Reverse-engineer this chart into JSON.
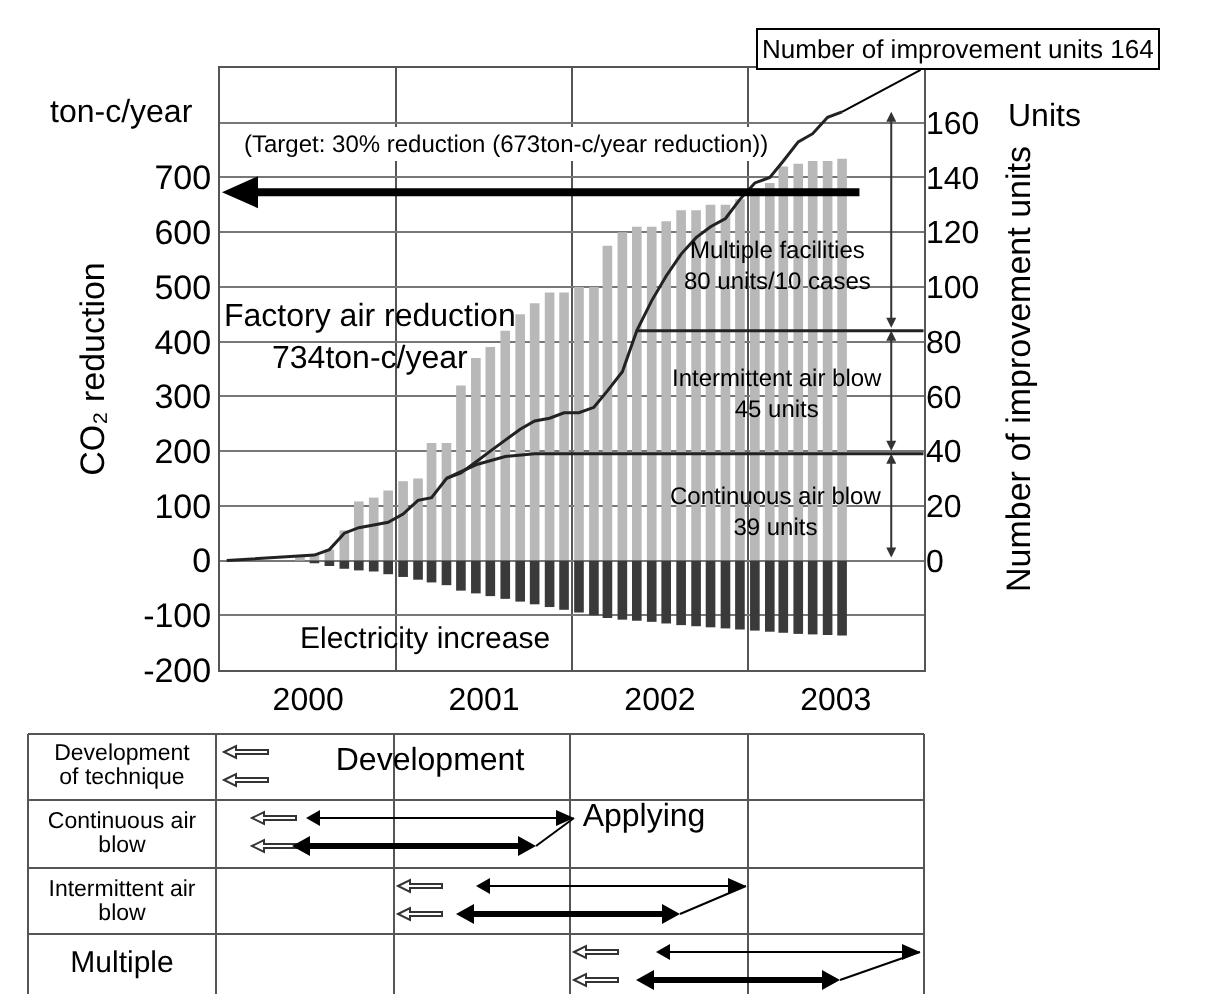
{
  "chart_data": {
    "type": "bar",
    "ylabel": "CO₂ reduction",
    "y2label": "Number of improvement units",
    "x": [
      "2000-06-15",
      "2000-07-15",
      "2000-08-15",
      "2000-09-15",
      "2000-10-15",
      "2000-11-15",
      "2000-12-15",
      "2001-01-15",
      "2001-02-15",
      "2001-03-15",
      "2001-04-15",
      "2001-05-15",
      "2001-06-15",
      "2001-07-15",
      "2001-08-15",
      "2001-09-15",
      "2001-10-15",
      "2001-11-15",
      "2001-12-15",
      "2002-01-15",
      "2002-02-15",
      "2002-03-15",
      "2002-04-15",
      "2002-05-15",
      "2002-06-15",
      "2002-07-15",
      "2002-08-15",
      "2002-09-15",
      "2002-10-15",
      "2002-11-15",
      "2002-12-15",
      "2003-01-15",
      "2003-02-15",
      "2003-03-15",
      "2003-04-15",
      "2003-05-15",
      "2003-06-15",
      "2003-07-15"
    ],
    "xlim": [
      "2000-01-01",
      "2004-01-01"
    ],
    "xticks": [
      {
        "value": "2000-07-02",
        "label": "2000"
      },
      {
        "value": "2001-07-02",
        "label": "2001"
      },
      {
        "value": "2002-07-02",
        "label": "2002"
      },
      {
        "value": "2003-07-02",
        "label": "2003"
      }
    ],
    "stacked": true,
    "ylim": [
      -200,
      900
    ],
    "yticks": [
      -200,
      -100,
      0,
      100,
      200,
      300,
      400,
      500,
      600,
      700,
      {
        "value": 800,
        "label": null
      }
    ],
    "y2lim": [
      -40,
      180
    ],
    "y2ticks": [
      0,
      20,
      40,
      60,
      80,
      100,
      120,
      140,
      160
    ],
    "grid": true,
    "series": [
      {
        "color": "#b8b8b8",
        "values": [
          8,
          12,
          20,
          55,
          108,
          115,
          128,
          145,
          150,
          215,
          215,
          320,
          370,
          390,
          420,
          450,
          470,
          490,
          490,
          500,
          500,
          575,
          600,
          610,
          610,
          620,
          640,
          640,
          650,
          650,
          660,
          680,
          690,
          720,
          725,
          730,
          730,
          734
        ]
      },
      {
        "color": "#3a3a3a",
        "values": [
          null,
          -5,
          -10,
          -15,
          -18,
          -20,
          -25,
          -30,
          -35,
          -40,
          -45,
          -55,
          -60,
          -65,
          -70,
          -75,
          -80,
          -85,
          -90,
          -95,
          -100,
          -105,
          -108,
          -110,
          -112,
          -115,
          -118,
          -120,
          -122,
          -124,
          -126,
          -128,
          -130,
          -132,
          -134,
          -135,
          -136,
          -137
        ]
      },
      {
        "type": "line",
        "axis": "y2",
        "color": "#222222",
        "x": [
          "2000-01-15",
          "2000-07-15",
          "2000-08-15",
          "2000-09-15",
          "2000-10-15",
          "2000-11-15",
          "2000-12-15",
          "2001-01-15",
          "2001-02-15",
          "2001-03-15",
          "2001-04-15",
          "2001-05-15",
          "2001-06-15",
          "2001-07-15",
          "2001-08-15",
          "2001-09-15",
          "2001-10-15",
          "2001-11-15",
          "2001-12-15",
          "2002-01-15",
          "2002-02-15",
          "2002-03-15",
          "2002-04-15",
          "2002-05-15",
          "2002-06-15",
          "2002-07-15",
          "2002-08-15",
          "2002-09-15",
          "2002-10-15",
          "2002-11-15",
          "2002-12-15",
          "2003-01-15",
          "2003-02-15",
          "2003-03-15",
          "2003-04-15",
          "2003-05-15",
          "2003-06-15",
          "2003-07-15"
        ],
        "values": [
          0,
          2,
          4,
          10,
          12,
          13,
          14,
          17,
          22,
          23,
          30,
          32,
          36,
          40,
          44,
          48,
          51,
          52,
          54,
          54,
          56,
          62,
          69,
          84,
          95,
          104,
          112,
          118,
          122,
          125,
          132,
          138,
          140,
          146,
          153,
          156,
          162,
          164
        ]
      },
      {
        "type": "line",
        "axis": "y2",
        "color": "#222222",
        "x": [
          "2002-05-15",
          "2003-12-31"
        ],
        "values": [
          84,
          84
        ]
      },
      {
        "type": "line",
        "axis": "y2",
        "color": "#222222",
        "x": [
          "2001-04-15",
          "2001-06-15",
          "2001-08-15",
          "2001-10-15",
          "2003-12-31"
        ],
        "values": [
          30,
          35,
          38,
          39,
          39
        ]
      }
    ],
    "ref_lines": [
      {
        "axis": "y",
        "value": 673,
        "label": "(Target: 30% reduction (673ton-c/year reduction))",
        "color": "#000000"
      }
    ],
    "annotations": [
      "ton-c/year",
      "Units",
      {
        "text": "Number of improvement units 164",
        "x": "2003-07-15",
        "y": 820
      },
      "Factory air reduction\n734ton-c/year",
      "Multiple facilities\n80 units/10 cases",
      "Intermittent air blow\n45 units",
      "Continuous air blow\n39 units",
      "Electricity increase",
      "Development\nof technique",
      "Development",
      "Continuous air\nblow",
      "Applying",
      "Intermittent air\nblow",
      "Multiple"
    ]
  }
}
